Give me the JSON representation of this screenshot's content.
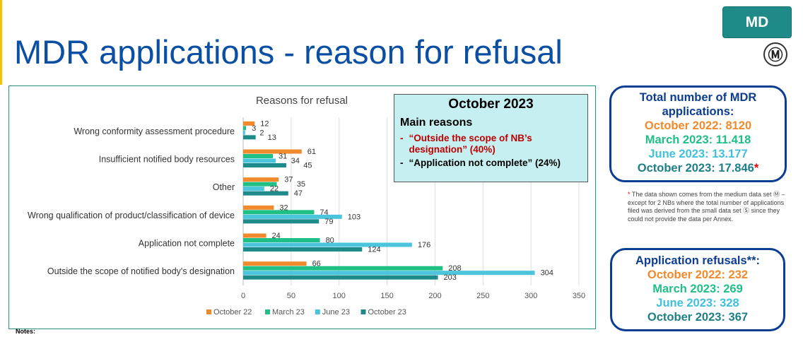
{
  "title": "MDR applications - reason for refusal",
  "badge": "MD",
  "badge_symbol": "Ⓜ",
  "callout": {
    "title": "October 2023",
    "heading": "Main reasons",
    "items": [
      {
        "bullet": "-",
        "text": "“Outside the scope of NB’s designation” (40%)",
        "color": "#c00000"
      },
      {
        "bullet": "-",
        "text": "“Application not complete” (24%)",
        "color": "#000000"
      }
    ]
  },
  "totals": {
    "title": "Total number of MDR applications:",
    "lines": [
      {
        "text": "October 2022: 8120",
        "color": "#f08a2c"
      },
      {
        "text": "March 2023: 11.418",
        "color": "#1fbf86"
      },
      {
        "text": "June 2023: 13.177",
        "color": "#3fc0dc"
      },
      {
        "text": "October 2023: 17.846",
        "color": "#1e7f86"
      }
    ],
    "asterisk": "*"
  },
  "footnote": {
    "mark": "*",
    "text": " The data shown comes from the medium data set Ⓜ – except for 2 NBs where the total number of applications filed was derived from the small data set Ⓢ since they could not provide the data per Annex."
  },
  "refusals": {
    "title": "Application refusals**:",
    "lines": [
      {
        "text": "October 2022: 232",
        "color": "#f08a2c"
      },
      {
        "text": "March 2023: 269",
        "color": "#1fbf86"
      },
      {
        "text": "June 2023: 328",
        "color": "#3fc0dc"
      },
      {
        "text": "October 2023: 367",
        "color": "#1e7f86"
      }
    ]
  },
  "notes": "Notes:",
  "chart_data": {
    "type": "bar",
    "orientation": "horizontal",
    "title": "Reasons for refusal",
    "categories": [
      "Wrong conformity assessment procedure",
      "Insufficient notified body resources",
      "Other",
      "Wrong qualification of product/classification of device",
      "Application not complete",
      "Outside the scope of notified body's designation"
    ],
    "series": [
      {
        "name": "October 22",
        "color": "#f08a2c",
        "values": [
          12,
          61,
          37,
          32,
          24,
          66
        ]
      },
      {
        "name": "March 23",
        "color": "#1fbf86",
        "values": [
          3,
          31,
          35,
          74,
          80,
          208
        ]
      },
      {
        "name": "June 23",
        "color": "#4cc5dc",
        "values": [
          2,
          34,
          22,
          103,
          176,
          304
        ]
      },
      {
        "name": "October 23",
        "color": "#1e8a8a",
        "values": [
          13,
          45,
          47,
          79,
          124,
          203
        ]
      }
    ],
    "xlim": [
      0,
      350
    ],
    "xticks": [
      0,
      50,
      100,
      150,
      200,
      250,
      300,
      350
    ],
    "grid": true,
    "legend": "bottom"
  }
}
